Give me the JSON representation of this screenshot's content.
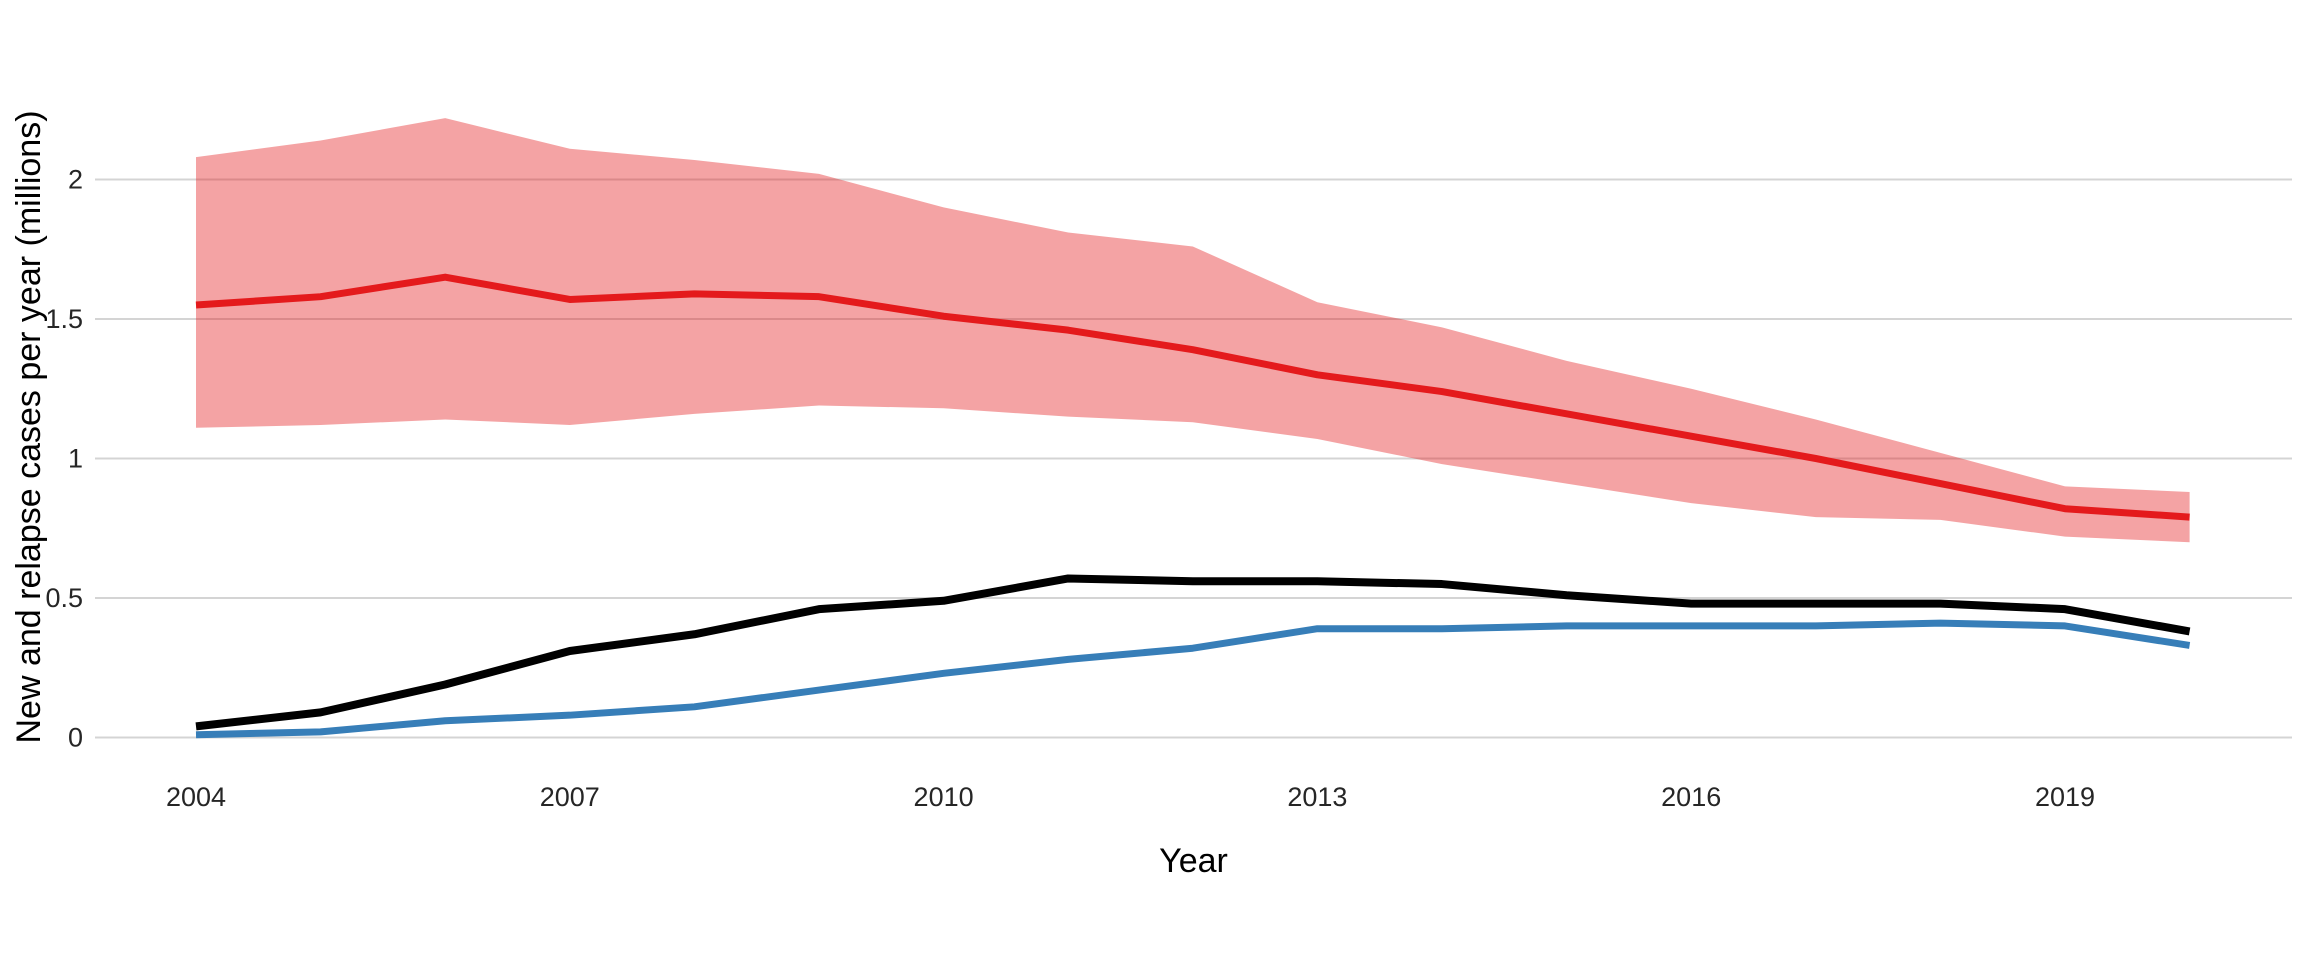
{
  "chart_data": {
    "type": "line",
    "title": "",
    "xlabel": "Year",
    "ylabel": "New and relapse cases per year (millions)",
    "x": [
      2004,
      2005,
      2006,
      2007,
      2008,
      2009,
      2010,
      2011,
      2012,
      2013,
      2014,
      2015,
      2016,
      2017,
      2018,
      2019,
      2020
    ],
    "x_ticks": [
      2004,
      2007,
      2010,
      2013,
      2016,
      2019
    ],
    "x_tick_labels": [
      "2004",
      "2007",
      "2010",
      "2013",
      "2016",
      "2019"
    ],
    "y_ticks": [
      0,
      0.5,
      1,
      1.5,
      2
    ],
    "y_tick_labels": [
      "0",
      "0.5",
      "1",
      "1.5",
      "2"
    ],
    "ylim": [
      -0.11,
      2.34
    ],
    "xlim": [
      2003.2,
      2020.8
    ],
    "grid": "horizontal-major-only",
    "legend": "none",
    "background": "#ffffff",
    "gridline_color": "#d4d4d4",
    "band": {
      "name": "uncertainty-band",
      "color": "#E41A1C",
      "opacity": 0.4,
      "upper": [
        2.08,
        2.14,
        2.22,
        2.11,
        2.07,
        2.02,
        1.9,
        1.81,
        1.76,
        1.56,
        1.47,
        1.35,
        1.25,
        1.14,
        1.02,
        0.9,
        0.88
      ],
      "lower": [
        1.11,
        1.12,
        1.14,
        1.12,
        1.16,
        1.19,
        1.18,
        1.15,
        1.13,
        1.07,
        0.98,
        0.91,
        0.84,
        0.79,
        0.78,
        0.72,
        0.7
      ]
    },
    "series": [
      {
        "name": "red-estimate-line",
        "color": "#E41A1C",
        "width": 7,
        "values": [
          1.55,
          1.58,
          1.65,
          1.57,
          1.59,
          1.58,
          1.51,
          1.46,
          1.39,
          1.3,
          1.24,
          1.16,
          1.08,
          1.0,
          0.91,
          0.82,
          0.79
        ]
      },
      {
        "name": "black-line",
        "color": "#000000",
        "width": 8,
        "values": [
          0.04,
          0.09,
          0.19,
          0.31,
          0.37,
          0.46,
          0.49,
          0.57,
          0.56,
          0.56,
          0.55,
          0.51,
          0.48,
          0.48,
          0.48,
          0.46,
          0.38
        ]
      },
      {
        "name": "blue-line",
        "color": "#377EB8",
        "width": 7,
        "values": [
          0.01,
          0.02,
          0.06,
          0.08,
          0.11,
          0.17,
          0.23,
          0.28,
          0.32,
          0.39,
          0.39,
          0.4,
          0.4,
          0.4,
          0.41,
          0.4,
          0.33
        ]
      }
    ]
  }
}
